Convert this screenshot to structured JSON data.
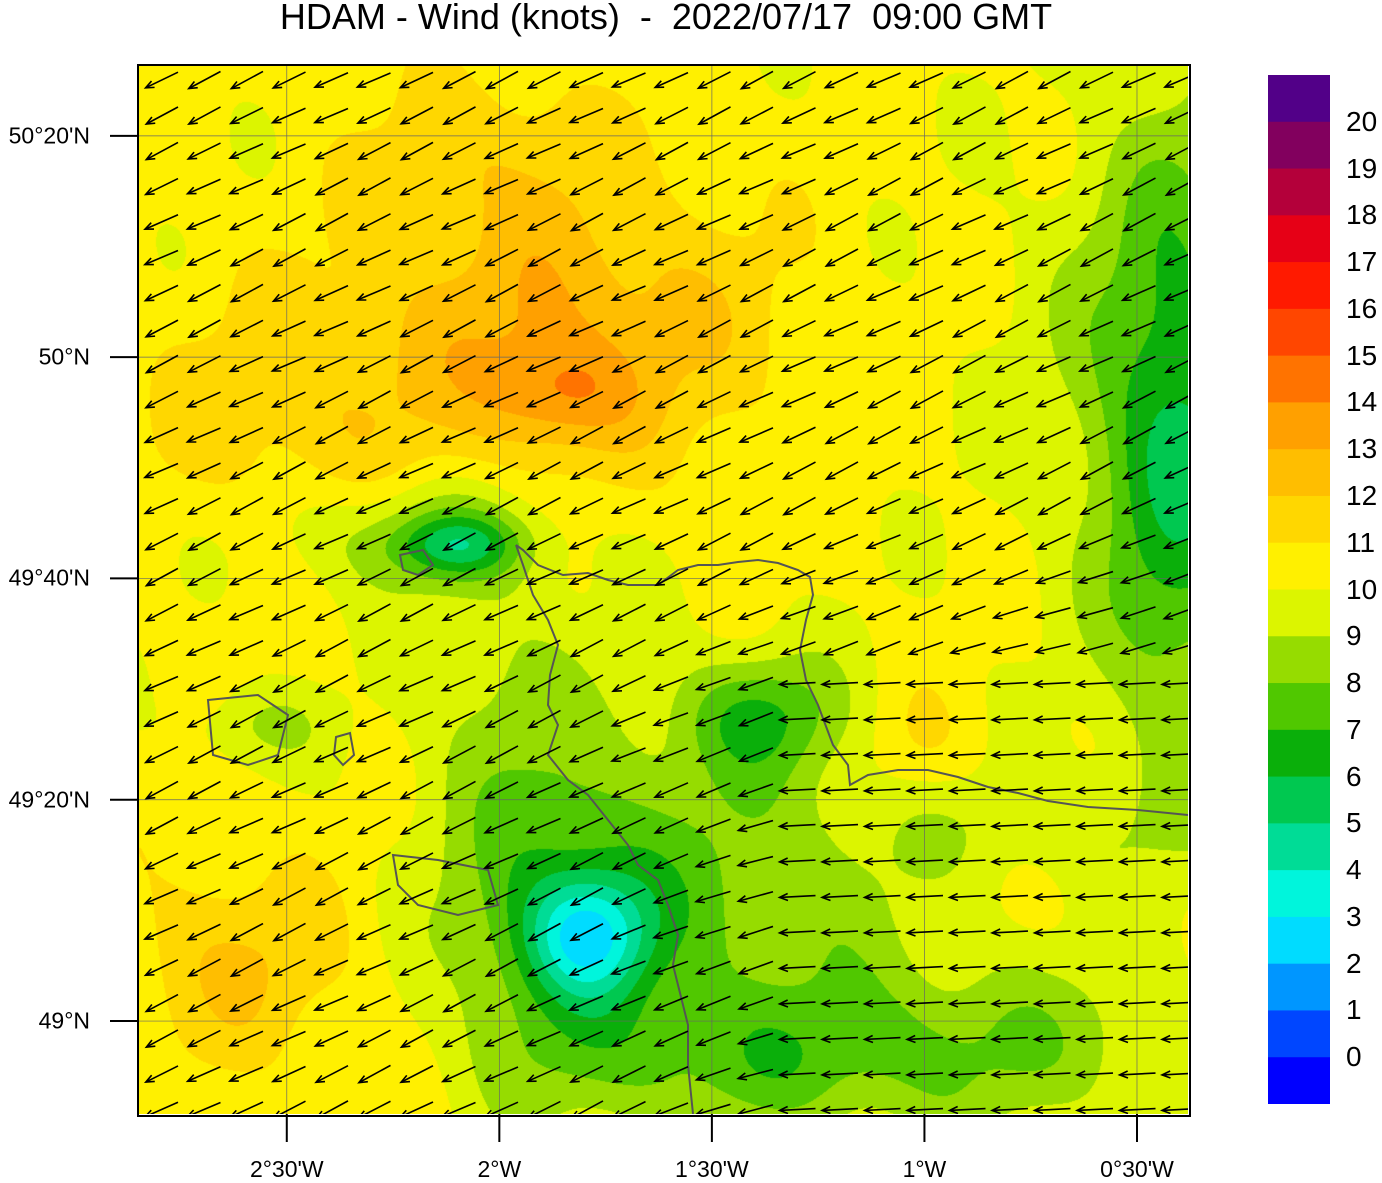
{
  "title": "HDAM - Wind (knots)  -  2022/07/17  09:00 GMT",
  "map": {
    "region": "English Channel / Cotentin peninsula",
    "lon_range": [
      -2.85,
      -0.38
    ],
    "lat_range": [
      48.86,
      50.44
    ],
    "lat_ticks": [
      {
        "value": 50.3333,
        "label": "50°20'N"
      },
      {
        "value": 50.0,
        "label": "50°N"
      },
      {
        "value": 49.6667,
        "label": "49°40'N"
      },
      {
        "value": 49.3333,
        "label": "49°20'N"
      },
      {
        "value": 49.0,
        "label": "49°N"
      }
    ],
    "lon_ticks": [
      {
        "value": -2.5,
        "label": "2°30'W"
      },
      {
        "value": -2.0,
        "label": "2°W"
      },
      {
        "value": -1.5,
        "label": "1°30'W"
      },
      {
        "value": -1.0,
        "label": "1°W"
      },
      {
        "value": -0.5,
        "label": "0°30'W"
      }
    ],
    "gridlines": true,
    "vector_field": "wind arrows, predominantly from the east-southeast",
    "coastline_color": "#555555"
  },
  "colorbar": {
    "unit": "knots",
    "labels": [
      "20",
      "19",
      "18",
      "17",
      "16",
      "15",
      "14",
      "13",
      "12",
      "11",
      "10",
      "9",
      "8",
      "7",
      "6",
      "5",
      "4",
      "3",
      "2",
      "1",
      "0"
    ],
    "colors": [
      "#520088",
      "#82005e",
      "#b4003a",
      "#e60016",
      "#ff1a00",
      "#ff4600",
      "#ff7300",
      "#ffa000",
      "#ffbe00",
      "#ffd700",
      "#fff000",
      "#dcf500",
      "#96dc00",
      "#50c800",
      "#0aaf0a",
      "#00c850",
      "#00dc96",
      "#00f5dc",
      "#00dcff",
      "#0096ff",
      "#0046ff",
      "#0000ff"
    ]
  }
}
